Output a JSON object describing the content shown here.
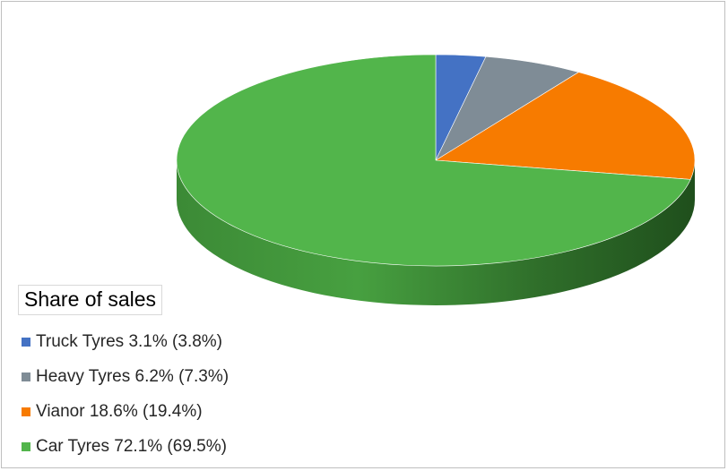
{
  "chart_data": {
    "type": "pie",
    "style": "3d",
    "legend_title": "Share of sales",
    "legend_position": "bottom-left",
    "slices": [
      {
        "label": "Truck Tyres 3.1% (3.8%)",
        "value": 3.1,
        "color": "#4472c4"
      },
      {
        "label": "Heavy Tyres 6.2% (7.3%)",
        "value": 6.2,
        "color": "#7f8c96"
      },
      {
        "label": "Vianor 18.6% (19.4%)",
        "value": 18.6,
        "color": "#f77b00"
      },
      {
        "label": "Car Tyres 72.1% (69.5%)",
        "value": 72.1,
        "color": "#52b54b"
      }
    ]
  }
}
